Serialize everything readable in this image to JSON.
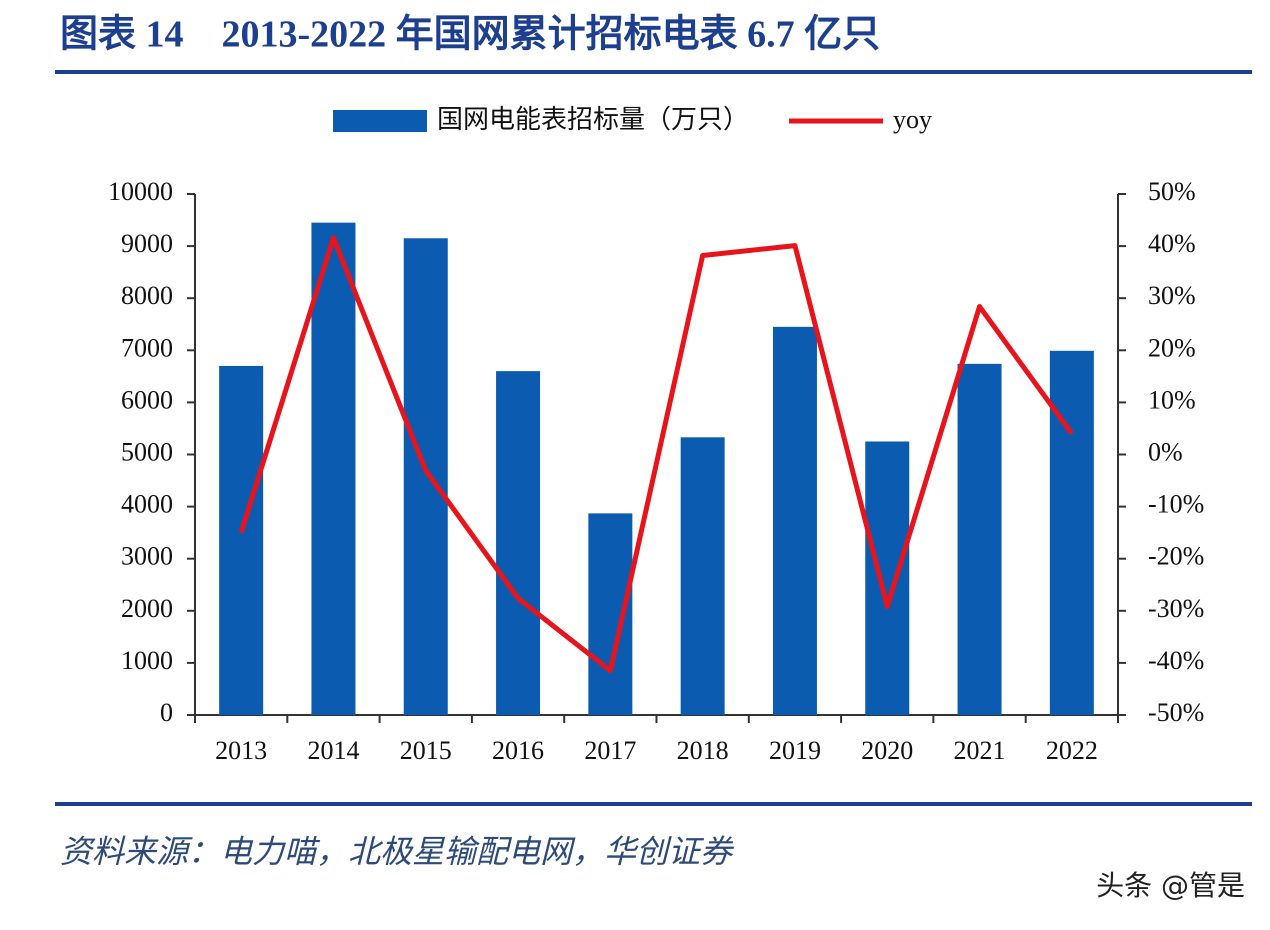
{
  "title": "图表 14　2013-2022 年国网累计招标电表 6.7 亿只",
  "chart_data": {
    "type": "bar-line",
    "categories": [
      "2013",
      "2014",
      "2015",
      "2016",
      "2017",
      "2018",
      "2019",
      "2020",
      "2021",
      "2022"
    ],
    "series": [
      {
        "name": "国网电能表招标量（万只）",
        "color": "#0b5cb0",
        "type": "bar",
        "values": [
          6700,
          9450,
          9150,
          6600,
          3870,
          5330,
          7450,
          5250,
          6740,
          6990
        ]
      },
      {
        "name": "yoy",
        "color": "#e8141c",
        "type": "line",
        "axis": "y2",
        "values": [
          -15,
          41.6,
          -3.1,
          -27.6,
          -41.5,
          38.2,
          40.1,
          -29.2,
          28.4,
          4
        ]
      }
    ],
    "ylim": [
      0,
      10000
    ],
    "yticks": [
      0,
      1000,
      2000,
      3000,
      4000,
      5000,
      6000,
      7000,
      8000,
      9000,
      10000
    ],
    "y2lim": [
      -50,
      50
    ],
    "y2ticks": [
      {
        "value": -50,
        "label": "-50%"
      },
      {
        "value": -40,
        "label": "-40%"
      },
      {
        "value": -30,
        "label": "-30%"
      },
      {
        "value": -20,
        "label": "-20%"
      },
      {
        "value": -10,
        "label": "-10%"
      },
      {
        "value": 0,
        "label": "0%"
      },
      {
        "value": 10,
        "label": "10%"
      },
      {
        "value": 20,
        "label": "20%"
      },
      {
        "value": 30,
        "label": "30%"
      },
      {
        "value": 40,
        "label": "40%"
      },
      {
        "value": 50,
        "label": "50%"
      }
    ],
    "legend": "top"
  },
  "source": "资料来源：电力喵，北极星输配电网，华创证券",
  "watermark": "头条 @管是"
}
